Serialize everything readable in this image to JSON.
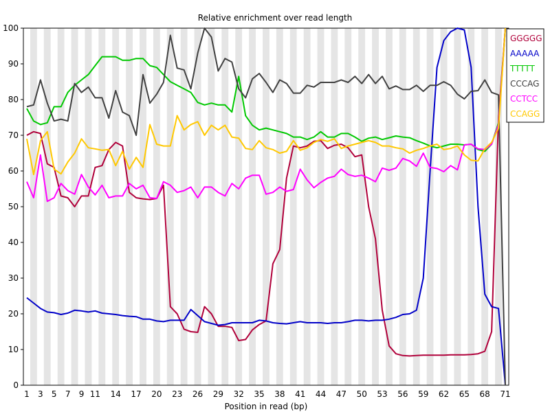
{
  "chart_data": {
    "type": "line",
    "title": "Relative enrichment over read length",
    "xlabel": "Position in read (bp)",
    "ylabel": "",
    "ylim": [
      0,
      100
    ],
    "y_ticks": [
      0,
      10,
      20,
      30,
      40,
      50,
      60,
      70,
      80,
      90,
      100
    ],
    "x_ticks": [
      1,
      3,
      5,
      7,
      9,
      11,
      14,
      17,
      20,
      23,
      26,
      29,
      32,
      35,
      38,
      41,
      44,
      47,
      50,
      53,
      56,
      59,
      62,
      65,
      68,
      71
    ],
    "x": [
      1,
      2,
      3,
      4,
      5,
      6,
      7,
      8,
      9,
      10,
      11,
      12,
      13,
      14,
      15,
      16,
      17,
      18,
      19,
      20,
      21,
      22,
      23,
      24,
      25,
      26,
      27,
      28,
      29,
      30,
      31,
      32,
      33,
      34,
      35,
      36,
      37,
      38,
      39,
      40,
      41,
      42,
      43,
      44,
      45,
      46,
      47,
      48,
      49,
      50,
      51,
      52,
      53,
      54,
      55,
      56,
      57,
      58,
      59,
      60,
      61,
      62,
      63,
      64,
      65,
      66,
      67,
      68,
      69,
      70,
      71
    ],
    "grid": "alternating vertical bands",
    "legend_position": "top-right",
    "series": [
      {
        "name": "GGGGG",
        "color": "#b0003a",
        "values": [
          70,
          71,
          70.5,
          62,
          61,
          53,
          52.5,
          50,
          53,
          53,
          61,
          61.5,
          66,
          68,
          67,
          54,
          52.5,
          52.2,
          52,
          52.3,
          56,
          22,
          20,
          15.7,
          15,
          14.8,
          22,
          20,
          16.5,
          16.5,
          16.2,
          12.5,
          12.8,
          15.5,
          17,
          18,
          34,
          38,
          58,
          67,
          66.5,
          67,
          68.3,
          68.5,
          66.3,
          67.2,
          67.5,
          66.5,
          64,
          64.5,
          50,
          41,
          21,
          11,
          8.8,
          8.3,
          8.2,
          8.3,
          8.4,
          8.4,
          8.4,
          8.4,
          8.5,
          8.5,
          8.5,
          8.6,
          8.8,
          9.5,
          15,
          75,
          100
        ]
      },
      {
        "name": "AAAAA",
        "color": "#0000c8",
        "values": [
          24.5,
          23,
          21.5,
          20.5,
          20.3,
          19.8,
          20.2,
          21,
          20.8,
          20.5,
          20.8,
          20.2,
          20,
          19.8,
          19.5,
          19.3,
          19.2,
          18.5,
          18.5,
          18,
          17.8,
          18.2,
          18.2,
          18.2,
          21.2,
          19.5,
          17.8,
          17.3,
          16.8,
          17,
          17.5,
          17.5,
          17.5,
          17.5,
          18.2,
          18,
          17.5,
          17.3,
          17.2,
          17.5,
          17.8,
          17.5,
          17.5,
          17.5,
          17.3,
          17.5,
          17.5,
          17.8,
          18.2,
          18.2,
          18,
          18.2,
          18.2,
          18.5,
          19,
          19.8,
          20,
          21,
          30,
          60,
          89,
          96.5,
          99,
          100,
          99.5,
          89,
          50,
          25.5,
          22,
          21.5,
          0
        ]
      },
      {
        "name": "TTTTT",
        "color": "#00c800",
        "values": [
          77.5,
          74,
          73,
          73.5,
          78,
          78,
          82,
          84,
          85.5,
          87,
          89.5,
          92,
          92,
          92,
          91,
          91,
          91.5,
          91.5,
          89.5,
          89,
          87,
          85,
          84,
          83,
          82,
          79.2,
          78.5,
          79,
          78.5,
          78.5,
          76.5,
          86.5,
          75.5,
          72.8,
          71.5,
          72,
          71.5,
          71,
          70.5,
          69.5,
          69.5,
          68.8,
          69.5,
          71,
          69.5,
          69.5,
          70.5,
          70.5,
          69.5,
          68.3,
          69.2,
          69.5,
          68.8,
          69.3,
          69.8,
          69.5,
          69.3,
          68.5,
          67.8,
          67,
          66.5,
          67,
          67.5,
          67.5,
          67.3,
          67.5,
          66,
          65.5,
          67.5,
          73.5,
          100
        ]
      },
      {
        "name": "CCCAG",
        "color": "#404040",
        "values": [
          78,
          78.5,
          85.5,
          79,
          74,
          74.5,
          74,
          84.5,
          82,
          83.5,
          80.5,
          80.5,
          74.8,
          82.5,
          76.5,
          75.5,
          70,
          87,
          79,
          81.5,
          84.8,
          98,
          88.8,
          88.3,
          83,
          93,
          100,
          97.5,
          88,
          91.5,
          90.5,
          83,
          80.5,
          85.8,
          87.3,
          84.8,
          82,
          85.5,
          84.5,
          81.8,
          81.8,
          84,
          83.5,
          84.8,
          84.8,
          84.8,
          85.5,
          84.8,
          86.5,
          84.5,
          87,
          84.5,
          86.5,
          83,
          83.8,
          82.8,
          82.8,
          84,
          82.3,
          84,
          84,
          85,
          84,
          81.5,
          80.2,
          82.3,
          82.5,
          85.5,
          82,
          81.3,
          0
        ]
      },
      {
        "name": "CCTCC",
        "color": "#ff00ff",
        "values": [
          57,
          52.5,
          64.5,
          51.5,
          52.5,
          56.5,
          54.5,
          53.5,
          59,
          55.5,
          53.3,
          56,
          52.5,
          53,
          53,
          56.5,
          55,
          56,
          52.5,
          52.3,
          57,
          56,
          54,
          54.5,
          55.5,
          52.5,
          55.5,
          55.5,
          54,
          53,
          56.5,
          55,
          58,
          58.8,
          58.8,
          53.5,
          54,
          55.5,
          54.3,
          54.8,
          60.5,
          57.5,
          55.3,
          56.8,
          58,
          58.5,
          60.5,
          59,
          58.5,
          58.8,
          58,
          57,
          60.8,
          60.2,
          60.8,
          63.5,
          62.8,
          61.3,
          65,
          61,
          60.7,
          59.8,
          61.5,
          60.3,
          67.3,
          67.5,
          66.2,
          66,
          67.5,
          73,
          100
        ]
      },
      {
        "name": "CCAGG",
        "color": "#ffc800",
        "values": [
          69,
          59,
          68.5,
          71,
          60.5,
          59.2,
          62.5,
          65,
          69,
          66.5,
          66.2,
          65.8,
          66,
          61.5,
          65.5,
          60.5,
          63.8,
          61,
          73,
          67.5,
          67,
          67,
          75.5,
          71.5,
          73,
          73.8,
          70,
          72.8,
          71.5,
          72.8,
          69.5,
          69.2,
          66.3,
          66,
          68.5,
          66.5,
          66,
          65,
          65.5,
          68.5,
          65.8,
          66.5,
          68,
          68.8,
          68.3,
          69,
          66.3,
          67,
          67.5,
          68,
          68.5,
          68,
          67,
          67,
          66.5,
          66.2,
          65,
          65.8,
          66.3,
          67,
          67.5,
          66,
          66.3,
          67,
          64.5,
          63,
          62.8,
          66.2,
          68,
          72,
          100
        ]
      }
    ]
  }
}
